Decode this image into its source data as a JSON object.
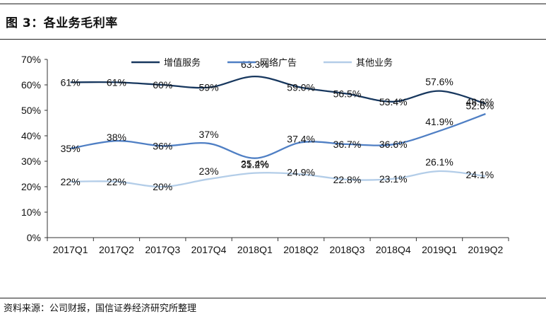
{
  "header": {
    "figure_title": "图 3：各业务毛利率"
  },
  "footer": {
    "source": "资料来源：公司财报，国信证券经济研究所整理"
  },
  "chart_data": {
    "type": "line",
    "categories": [
      "2017Q1",
      "2017Q2",
      "2017Q3",
      "2017Q4",
      "2018Q1",
      "2018Q2",
      "2018Q3",
      "2018Q4",
      "2019Q1",
      "2019Q2"
    ],
    "ylim": [
      0,
      70
    ],
    "yticks": [
      "0%",
      "10%",
      "20%",
      "30%",
      "40%",
      "50%",
      "60%",
      "70%"
    ],
    "grid": false,
    "legend_position": "top",
    "series": [
      {
        "name": "增值服务",
        "color": "#17375e",
        "values": [
          61,
          61,
          60,
          59,
          63.3,
          59.0,
          56.5,
          53.4,
          57.6,
          52.6
        ],
        "labels": [
          "61%",
          "61%",
          "60%",
          "59%",
          "63.3%",
          "59.0%",
          "56.5%",
          "53.4%",
          "57.6%",
          "52.6%"
        ]
      },
      {
        "name": "网络广告",
        "color": "#4f7fc4",
        "values": [
          35,
          38,
          36,
          37,
          31.2,
          37.4,
          36.7,
          36.6,
          41.9,
          48.6
        ],
        "labels": [
          "35%",
          "38%",
          "36%",
          "37%",
          "31.2%",
          "37.4%",
          "36.7%",
          "36.6%",
          "41.9%",
          "48.6%"
        ]
      },
      {
        "name": "其他业务",
        "color": "#b3cde8",
        "values": [
          22,
          22,
          20,
          23,
          25.4,
          24.9,
          22.8,
          23.1,
          26.1,
          24.1
        ],
        "labels": [
          "22%",
          "22%",
          "20%",
          "23%",
          "25.4%",
          "24.9%",
          "22.8%",
          "23.1%",
          "26.1%",
          "24.1%"
        ]
      }
    ]
  }
}
